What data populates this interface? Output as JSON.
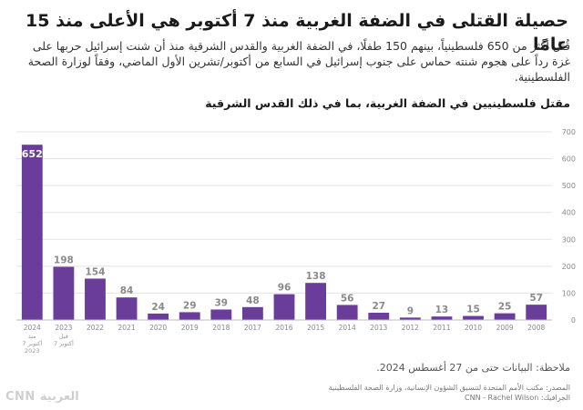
{
  "header": {
    "title": "حصيلة القتلى في الضفة الغربية منذ 7 أكتوبر هي الأعلى منذ 15 عامًا",
    "subtitle": "قُتل أكثر من 650 فلسطينياً، بينهم 150 طفلًا، في الضفة الغربية والقدس الشرقية منذ أن شنت إسرائيل حربها على غزة رداً على هجوم شنته حماس على جنوب إسرائيل في السابع من أكتوبر/تشرين الأول الماضي، وفقاً لوزارة الصحة الفلسطينية."
  },
  "footer": {
    "note": "ملاحظة: البيانات حتى من 27 أغسطس 2024.",
    "source": "المصدر: مكتب الأمم المتحدة لتنسيق الشؤون الإنسانية، وزارة الصحة الفلسطينية",
    "graphic": "الجرافيك: CNN - Rachel Wilson",
    "logo": "CNN العربية"
  },
  "colors": {
    "bar": "#6a3d9a",
    "bar_highlight": "#7b4aa6",
    "grid": "#e3e3e3",
    "axis_text": "#888888"
  },
  "chart_data": {
    "type": "bar",
    "title": "مقتل فلسطينيين في الضفة الغربية، بما في ذلك القدس الشرقية",
    "categories": [
      "2024",
      "2023",
      "2022",
      "2021",
      "2020",
      "2019",
      "2018",
      "2017",
      "2016",
      "2015",
      "2014",
      "2013",
      "2012",
      "2011",
      "2010",
      "2009",
      "2008"
    ],
    "category_sublabels": [
      [
        "منذ",
        "7 أكتوبر",
        "2023"
      ],
      [
        "قبل",
        "7 أكتوبر"
      ],
      [],
      [],
      [],
      [],
      [],
      [],
      [],
      [],
      [],
      [],
      [],
      [],
      [],
      [],
      []
    ],
    "values": [
      652,
      198,
      154,
      84,
      24,
      29,
      39,
      48,
      96,
      138,
      56,
      27,
      9,
      13,
      15,
      25,
      57
    ],
    "ylim": [
      0,
      700
    ],
    "yticks": [
      0,
      100,
      200,
      300,
      400,
      500,
      600,
      700
    ],
    "y_axis_side": "right",
    "grid": true,
    "xlabel": "",
    "ylabel": ""
  }
}
